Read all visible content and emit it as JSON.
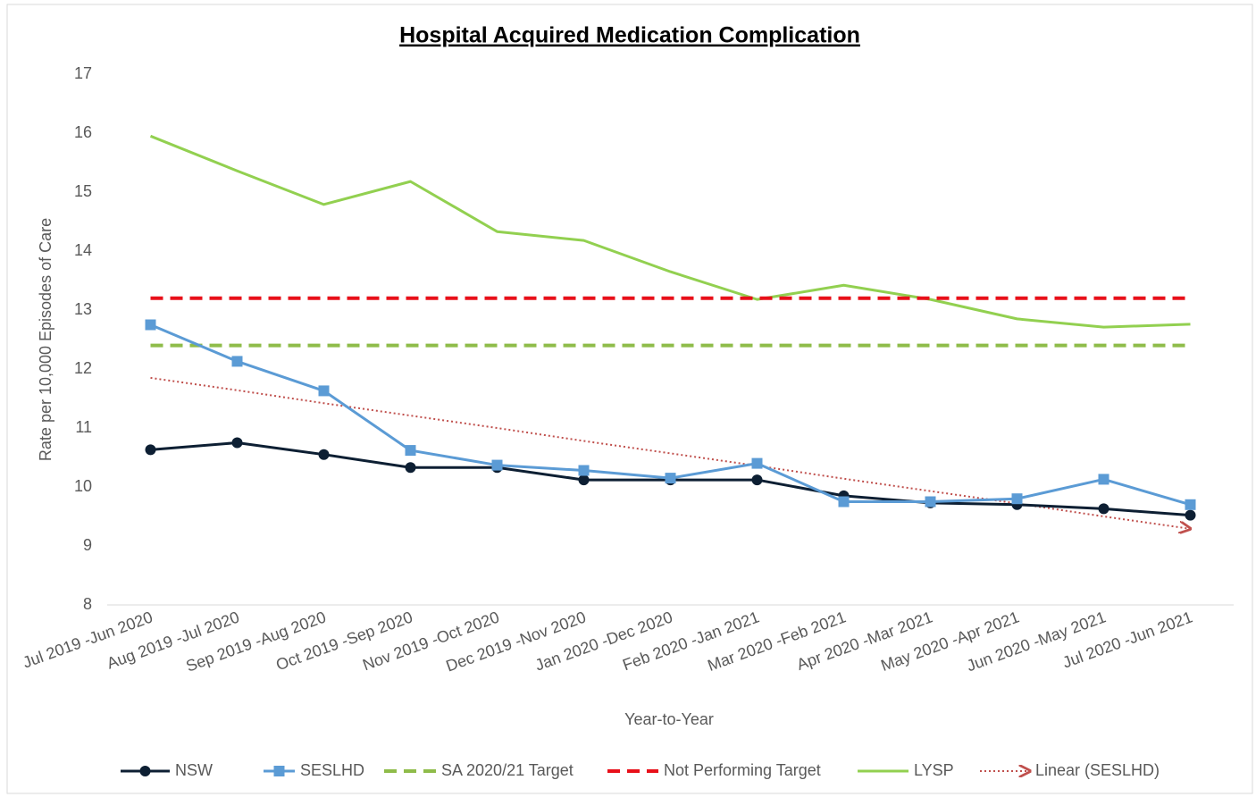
{
  "chart_data": {
    "type": "line",
    "title": "Hospital Acquired Medication Complication",
    "x_label": "Year-to-Year",
    "y_label": "Rate per 10,000 Episodes of Care",
    "categories": [
      "Jul 2019 -Jun 2020",
      "Aug 2019 -Jul 2020",
      "Sep 2019 -Aug 2020",
      "Oct 2019 -Sep 2020",
      "Nov 2019 -Oct 2020",
      "Dec 2019 -Nov 2020",
      "Jan 2020 -Dec 2020",
      "Feb 2020 -Jan 2021",
      "Mar 2020 -Feb 2021",
      "Apr 2020 -Mar 2021",
      "May 2020 -Apr 2021",
      "Jun 2020 -May 2021",
      "Jul 2020 -Jun 2021"
    ],
    "ylim": [
      8,
      17
    ],
    "yticks": [
      8,
      9,
      10,
      11,
      12,
      13,
      14,
      15,
      16,
      17
    ],
    "grid": false,
    "legend": "bottom",
    "series": [
      {
        "name": "NSW",
        "color": "#0d1f33",
        "style": "solid",
        "marker": "circle",
        "values": [
          10.63,
          10.75,
          10.55,
          10.33,
          10.33,
          10.12,
          10.12,
          10.12,
          9.85,
          9.73,
          9.7,
          9.63,
          9.52
        ]
      },
      {
        "name": "SESLHD",
        "color": "#5b9bd5",
        "style": "solid",
        "marker": "square",
        "values": [
          12.75,
          12.13,
          11.63,
          10.62,
          10.37,
          10.28,
          10.15,
          10.4,
          9.75,
          9.75,
          9.8,
          10.13,
          9.7
        ]
      },
      {
        "name": "SA 2020/21 Target",
        "color": "#8fbc4a",
        "style": "dashed",
        "marker": null,
        "values": [
          12.4,
          12.4,
          12.4,
          12.4,
          12.4,
          12.4,
          12.4,
          12.4,
          12.4,
          12.4,
          12.4,
          12.4,
          12.4
        ]
      },
      {
        "name": "Not Performing Target",
        "color": "#e8101a",
        "style": "dashed",
        "marker": null,
        "values": [
          13.2,
          13.2,
          13.2,
          13.2,
          13.2,
          13.2,
          13.2,
          13.2,
          13.2,
          13.2,
          13.2,
          13.2,
          13.2
        ]
      },
      {
        "name": "LYSP",
        "color": "#92d050",
        "style": "solid",
        "marker": null,
        "values": [
          15.95,
          15.36,
          14.79,
          15.18,
          14.33,
          14.18,
          13.65,
          13.18,
          13.42,
          13.18,
          12.85,
          12.71,
          12.76
        ]
      },
      {
        "name": "Linear (SESLHD)",
        "color": "#c0504d",
        "style": "dotted",
        "marker": "arrow",
        "values": [
          11.85,
          11.64,
          11.42,
          11.21,
          11.0,
          10.78,
          10.57,
          10.36,
          10.14,
          9.93,
          9.72,
          9.5,
          9.29
        ]
      }
    ]
  }
}
